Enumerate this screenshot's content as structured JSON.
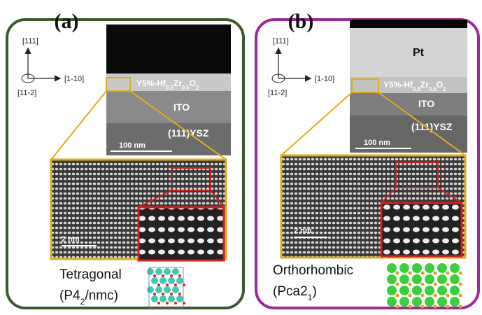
{
  "panels": [
    {
      "label": "(a)",
      "axes": {
        "up": "[111]",
        "right": "[1-10]",
        "out": "[11-2]"
      },
      "film": [
        "Y5%-Hf",
        "0.5",
        "Zr",
        "0.5",
        "O",
        "2"
      ],
      "ito": "ITO",
      "substrate": "(111)YSZ",
      "tem_scale_bar": "100 nm",
      "hrtem_scale_bar": "2 nm",
      "phase": "Tetragonal",
      "space_group": [
        "(P4",
        "2",
        "/nmc)"
      ]
    },
    {
      "label": "(b)",
      "axes": {
        "up": "[111]",
        "right": "[1-10]",
        "out": "[11-2]"
      },
      "electrode": "Pt",
      "film": [
        "Y5%-Hf",
        "0.5",
        "Zr",
        "0.5",
        "O",
        "2"
      ],
      "ito": "ITO",
      "substrate": "(111)YSZ",
      "tem_scale_bar": "100 nm",
      "hrtem_scale_bar": "2 nm",
      "phase": "Orthorhombic",
      "space_group": [
        "(Pca2",
        "1",
        ")"
      ]
    }
  ]
}
